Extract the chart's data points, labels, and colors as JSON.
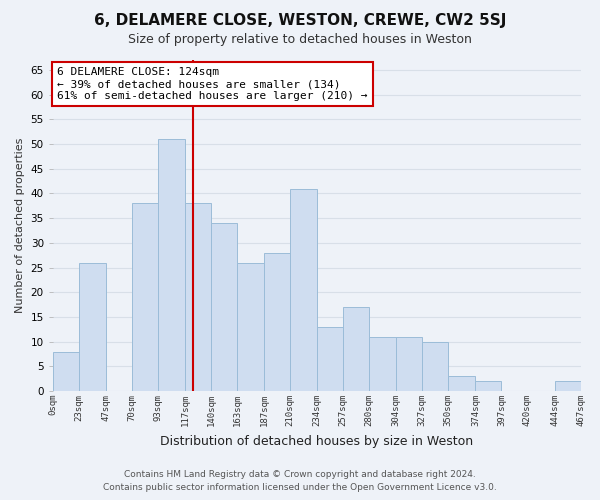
{
  "title": "6, DELAMERE CLOSE, WESTON, CREWE, CW2 5SJ",
  "subtitle": "Size of property relative to detached houses in Weston",
  "xlabel": "Distribution of detached houses by size in Weston",
  "ylabel": "Number of detached properties",
  "bar_color": "#cfddf0",
  "bar_edge_color": "#9bbcd8",
  "grid_color": "#d8dfe8",
  "vline_color": "#cc0000",
  "vline_x": 124,
  "annotation_line1": "6 DELAMERE CLOSE: 124sqm",
  "annotation_line2": "← 39% of detached houses are smaller (134)",
  "annotation_line3": "61% of semi-detached houses are larger (210) →",
  "annotation_box_color": "#ffffff",
  "annotation_box_edge": "#cc0000",
  "bins": [
    0,
    23,
    47,
    70,
    93,
    117,
    140,
    163,
    187,
    210,
    234,
    257,
    280,
    304,
    327,
    350,
    374,
    397,
    420,
    444,
    467
  ],
  "bar_heights": [
    8,
    26,
    0,
    38,
    51,
    38,
    34,
    26,
    28,
    41,
    13,
    17,
    11,
    11,
    10,
    3,
    2,
    0,
    0,
    2
  ],
  "ylim": [
    0,
    67
  ],
  "yticks": [
    0,
    5,
    10,
    15,
    20,
    25,
    30,
    35,
    40,
    45,
    50,
    55,
    60,
    65
  ],
  "footer_line1": "Contains HM Land Registry data © Crown copyright and database right 2024.",
  "footer_line2": "Contains public sector information licensed under the Open Government Licence v3.0.",
  "background_color": "#eef2f8",
  "plot_bg_color": "#eef2f8"
}
